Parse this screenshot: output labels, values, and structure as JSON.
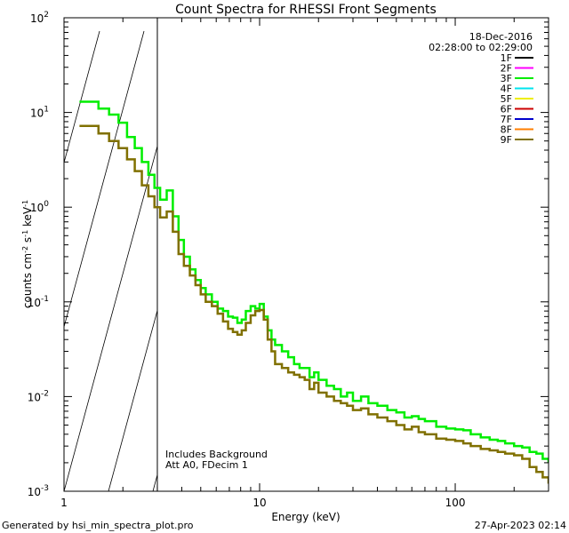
{
  "chart_data": {
    "type": "line",
    "title": "Count Spectra for RHESSI Front Segments",
    "xlabel": "Energy (keV)",
    "ylabel": {
      "base": "counts cm",
      "sup1": "-2",
      "mid1": " s",
      "sup2": "-1",
      "mid2": " keV",
      "sup3": "-1"
    },
    "xscale": "log",
    "yscale": "log",
    "xlim": [
      1,
      300
    ],
    "ylim": [
      0.001,
      100
    ],
    "x_ticks": [
      {
        "label": "1",
        "value": 1
      },
      {
        "label": "10",
        "value": 10
      },
      {
        "label": "100",
        "value": 100
      }
    ],
    "y_ticks": [
      {
        "base": "10",
        "exp": "-3",
        "value": 0.001
      },
      {
        "base": "10",
        "exp": "-2",
        "value": 0.01
      },
      {
        "base": "10",
        "exp": "-1",
        "value": 0.1
      },
      {
        "base": "10",
        "exp": "0",
        "value": 1
      },
      {
        "base": "10",
        "exp": "1",
        "value": 10
      },
      {
        "base": "10",
        "exp": "2",
        "value": 100
      }
    ],
    "date": "18-Dec-2016",
    "time_range": "02:28:00 to 02:29:00",
    "annotations": [
      "Includes Background",
      "Att A0, FDecim 1"
    ],
    "excluded_region": {
      "from": 1,
      "to": 3,
      "style": "hatched"
    },
    "legend": [
      {
        "label": "1F",
        "color": "#000000"
      },
      {
        "label": "2F",
        "color": "#ff00ff"
      },
      {
        "label": "3F",
        "color": "#00ee00"
      },
      {
        "label": "4F",
        "color": "#00e5ee"
      },
      {
        "label": "5F",
        "color": "#eeee00"
      },
      {
        "label": "6F",
        "color": "#cc0000"
      },
      {
        "label": "7F",
        "color": "#0000cc"
      },
      {
        "label": "8F",
        "color": "#ff7f00"
      },
      {
        "label": "9F",
        "color": "#807000"
      }
    ],
    "series": [
      {
        "name": "3F",
        "color": "#00ee00",
        "style": "step",
        "x": [
          1.2,
          1.38,
          1.5,
          1.7,
          1.9,
          2.1,
          2.3,
          2.5,
          2.7,
          2.9,
          3.1,
          3.35,
          3.6,
          3.85,
          4.1,
          4.4,
          4.7,
          5.0,
          5.3,
          5.7,
          6.1,
          6.5,
          6.9,
          7.3,
          7.7,
          8.1,
          8.5,
          9.0,
          9.5,
          10.0,
          10.5,
          11.0,
          11.5,
          12.0,
          13,
          14,
          15,
          16,
          17,
          18,
          19,
          20,
          22,
          24,
          26,
          28,
          30,
          33,
          36,
          40,
          45,
          50,
          55,
          60,
          65,
          70,
          80,
          90,
          100,
          110,
          120,
          135,
          150,
          165,
          180,
          200,
          220,
          240,
          260,
          280,
          300
        ],
        "y": [
          13,
          13,
          11,
          9.5,
          7.8,
          5.5,
          4.2,
          3.0,
          2.2,
          1.6,
          1.2,
          1.5,
          0.8,
          0.45,
          0.3,
          0.22,
          0.17,
          0.14,
          0.12,
          0.1,
          0.085,
          0.08,
          0.07,
          0.068,
          0.06,
          0.065,
          0.08,
          0.09,
          0.085,
          0.095,
          0.07,
          0.05,
          0.04,
          0.035,
          0.03,
          0.026,
          0.022,
          0.02,
          0.02,
          0.016,
          0.018,
          0.015,
          0.013,
          0.012,
          0.01,
          0.011,
          0.009,
          0.01,
          0.0085,
          0.008,
          0.0072,
          0.0068,
          0.006,
          0.0062,
          0.0058,
          0.0055,
          0.0048,
          0.0046,
          0.0045,
          0.0044,
          0.004,
          0.0037,
          0.0035,
          0.0034,
          0.0032,
          0.003,
          0.0029,
          0.0026,
          0.0025,
          0.0022,
          0.002
        ]
      },
      {
        "name": "9F",
        "color": "#807000",
        "style": "step",
        "x": [
          1.2,
          1.38,
          1.5,
          1.7,
          1.9,
          2.1,
          2.3,
          2.5,
          2.7,
          2.9,
          3.1,
          3.35,
          3.6,
          3.85,
          4.1,
          4.4,
          4.7,
          5.0,
          5.3,
          5.7,
          6.1,
          6.5,
          6.9,
          7.3,
          7.7,
          8.1,
          8.5,
          9.0,
          9.5,
          10.0,
          10.5,
          11.0,
          11.5,
          12.0,
          13,
          14,
          15,
          16,
          17,
          18,
          19,
          20,
          22,
          24,
          26,
          28,
          30,
          33,
          36,
          40,
          45,
          50,
          55,
          60,
          65,
          70,
          80,
          90,
          100,
          110,
          120,
          135,
          150,
          165,
          180,
          200,
          220,
          240,
          260,
          280,
          300
        ],
        "y": [
          7.2,
          7.2,
          6.0,
          5.0,
          4.2,
          3.2,
          2.4,
          1.7,
          1.3,
          1.0,
          0.78,
          0.9,
          0.55,
          0.32,
          0.24,
          0.19,
          0.15,
          0.12,
          0.1,
          0.09,
          0.075,
          0.062,
          0.052,
          0.048,
          0.045,
          0.05,
          0.06,
          0.072,
          0.08,
          0.082,
          0.065,
          0.04,
          0.03,
          0.022,
          0.02,
          0.018,
          0.017,
          0.016,
          0.015,
          0.012,
          0.014,
          0.011,
          0.01,
          0.009,
          0.0085,
          0.008,
          0.0072,
          0.0075,
          0.0065,
          0.006,
          0.0055,
          0.005,
          0.0045,
          0.0048,
          0.0042,
          0.004,
          0.0036,
          0.0035,
          0.0034,
          0.0032,
          0.003,
          0.0028,
          0.0027,
          0.0026,
          0.0025,
          0.0024,
          0.0022,
          0.0018,
          0.0016,
          0.0014,
          0.0012
        ]
      }
    ]
  },
  "footer": {
    "generated_by": "Generated by hsi_min_spectra_plot.pro",
    "timestamp": "27-Apr-2023 02:14"
  }
}
